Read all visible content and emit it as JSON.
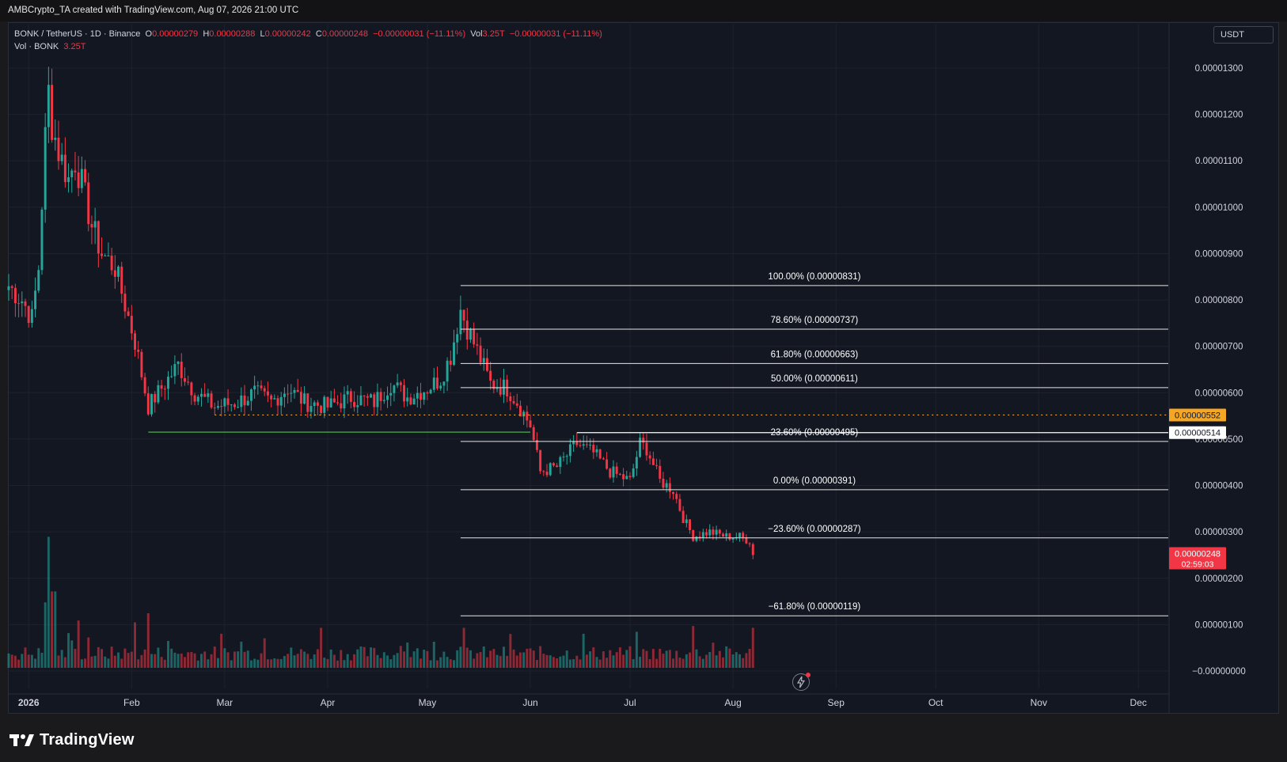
{
  "attribution": "AMBCrypto_TA created with TradingView.com, Aug 07, 2026 21:00 UTC",
  "legend": {
    "symbol": "BONK / TetherUS · 1D · Binance",
    "open_label": "O",
    "open": "0.00000279",
    "high_label": "H",
    "high": "0.00000288",
    "low_label": "L",
    "low": "0.00000242",
    "close_label": "C",
    "close": "0.00000248",
    "change": "−0.00000031 (−11.11%)",
    "vol_label": "Vol",
    "vol": "3.25T",
    "vol_change": "−0.00000031 (−11.11%)",
    "vol_row_label": "Vol · BONK",
    "vol_row_value": "3.25T"
  },
  "currency_button": "USDT",
  "footer_logo_text": "TradingView",
  "colors": {
    "up": "#26a69a",
    "down": "#f23645",
    "background": "#131722",
    "fib": "#e6e6e6",
    "support": "#4caf50",
    "resistance": "#f5a623"
  },
  "chart_data": {
    "type": "candlestick",
    "symbol": "BONK/USDT",
    "interval": "1D",
    "x_axis_ticks": [
      "2026",
      "Feb",
      "Mar",
      "Apr",
      "May",
      "Jun",
      "Jul",
      "Aug",
      "Sep",
      "Oct",
      "Nov",
      "Dec"
    ],
    "x_range": [
      "2025-12-26",
      "2026-12-10"
    ],
    "y_axis_ticks": [
      "0.00001300",
      "0.00001200",
      "0.00001100",
      "0.00001000",
      "0.00000900",
      "0.00000800",
      "0.00000700",
      "0.00000600",
      "0.00000500",
      "0.00000400",
      "0.00000300",
      "0.00000200",
      "0.00000100",
      "−0.00000000"
    ],
    "y_range": [
      -2e-07,
      1.35e-05
    ],
    "fibonacci_levels": [
      {
        "label": "100.00% (0.00000831)",
        "value": 8.31e-06
      },
      {
        "label": "78.60% (0.00000737)",
        "value": 7.37e-06
      },
      {
        "label": "61.80% (0.00000663)",
        "value": 6.63e-06
      },
      {
        "label": "50.00% (0.00000611)",
        "value": 6.11e-06
      },
      {
        "label": "23.60% (0.00000495)",
        "value": 4.95e-06
      },
      {
        "label": "0.00% (0.00000391)",
        "value": 3.91e-06
      },
      {
        "label": "−23.60% (0.00000287)",
        "value": 2.87e-06
      },
      {
        "label": "−61.80% (0.00000119)",
        "value": 1.19e-06
      }
    ],
    "fibonacci_start_date": "2026-05-11",
    "fibonacci_end_date": "2026-12-10",
    "horizontal_lines": [
      {
        "value": 5.52e-06,
        "label": "0.00000552",
        "style": "dotted",
        "color": "#f5a623",
        "start": "2026-02-26",
        "end": "2026-12-10"
      },
      {
        "value": 5.14e-06,
        "label": "0.00000514",
        "style": "solid",
        "color": "#ffffff",
        "start": "2026-06-15",
        "end": "2026-12-10"
      },
      {
        "value": 5.15e-06,
        "label": "",
        "style": "solid",
        "color": "#4caf50",
        "start": "2026-02-06",
        "end": "2026-06-01"
      }
    ],
    "current_price": {
      "label": "0.00000248",
      "countdown": "02:59:03"
    },
    "price_path": [
      [
        "2025-12-26",
        8.3e-06
      ],
      [
        "2025-12-30",
        8e-06
      ],
      [
        "2026-01-02",
        7.6e-06
      ],
      [
        "2026-01-04",
        8.7e-06
      ],
      [
        "2026-01-06",
        1.15e-05
      ],
      [
        "2026-01-07",
        1.25e-05
      ],
      [
        "2026-01-08",
        1.18e-05
      ],
      [
        "2026-01-10",
        1.12e-05
      ],
      [
        "2026-01-13",
        1.06e-05
      ],
      [
        "2026-01-15",
        1.1e-05
      ],
      [
        "2026-01-17",
        1.05e-05
      ],
      [
        "2026-01-20",
        9.6e-06
      ],
      [
        "2026-01-23",
        9e-06
      ],
      [
        "2026-01-27",
        8.7e-06
      ],
      [
        "2026-01-30",
        7.9e-06
      ],
      [
        "2026-02-02",
        7.1e-06
      ],
      [
        "2026-02-06",
        5.7e-06
      ],
      [
        "2026-02-10",
        6.1e-06
      ],
      [
        "2026-02-15",
        6.6e-06
      ],
      [
        "2026-02-20",
        6e-06
      ],
      [
        "2026-02-26",
        5.7e-06
      ],
      [
        "2026-03-05",
        5.8e-06
      ],
      [
        "2026-03-10",
        6e-06
      ],
      [
        "2026-03-15",
        5.8e-06
      ],
      [
        "2026-03-20",
        6.1e-06
      ],
      [
        "2026-03-25",
        5.8e-06
      ],
      [
        "2026-04-01",
        5.7e-06
      ],
      [
        "2026-04-08",
        5.9e-06
      ],
      [
        "2026-04-15",
        5.8e-06
      ],
      [
        "2026-04-20",
        6.2e-06
      ],
      [
        "2026-04-25",
        5.9e-06
      ],
      [
        "2026-05-01",
        6.1e-06
      ],
      [
        "2026-05-05",
        6.3e-06
      ],
      [
        "2026-05-08",
        6.8e-06
      ],
      [
        "2026-05-11",
        7.8e-06
      ],
      [
        "2026-05-13",
        7.4e-06
      ],
      [
        "2026-05-16",
        6.9e-06
      ],
      [
        "2026-05-20",
        6.2e-06
      ],
      [
        "2026-05-25",
        6.1e-06
      ],
      [
        "2026-05-28",
        5.8e-06
      ],
      [
        "2026-06-01",
        5.3e-06
      ],
      [
        "2026-06-04",
        4.3e-06
      ],
      [
        "2026-06-09",
        4.4e-06
      ],
      [
        "2026-06-15",
        4.9e-06
      ],
      [
        "2026-06-20",
        4.7e-06
      ],
      [
        "2026-06-25",
        4.3e-06
      ],
      [
        "2026-07-01",
        4.1e-06
      ],
      [
        "2026-07-04",
        4.9e-06
      ],
      [
        "2026-07-06",
        4.8e-06
      ],
      [
        "2026-07-10",
        4.1e-06
      ],
      [
        "2026-07-14",
        3.9e-06
      ],
      [
        "2026-07-17",
        3.3e-06
      ],
      [
        "2026-07-20",
        2.9e-06
      ],
      [
        "2026-07-25",
        3e-06
      ],
      [
        "2026-07-30",
        2.9e-06
      ],
      [
        "2026-08-03",
        2.9e-06
      ],
      [
        "2026-08-06",
        2.8e-06
      ],
      [
        "2026-08-07",
        2.5e-06
      ]
    ],
    "volume_spikes": [
      [
        "2026-01-06",
        0.36
      ],
      [
        "2026-01-07",
        0.72
      ],
      [
        "2026-01-08",
        0.42
      ],
      [
        "2026-01-09",
        0.42
      ],
      [
        "2026-01-16",
        0.26
      ],
      [
        "2026-02-06",
        0.3
      ],
      [
        "2026-02-02",
        0.25
      ],
      [
        "2026-03-30",
        0.22
      ],
      [
        "2026-05-12",
        0.22
      ],
      [
        "2026-07-20",
        0.23
      ],
      [
        "2026-08-07",
        0.22
      ]
    ]
  }
}
